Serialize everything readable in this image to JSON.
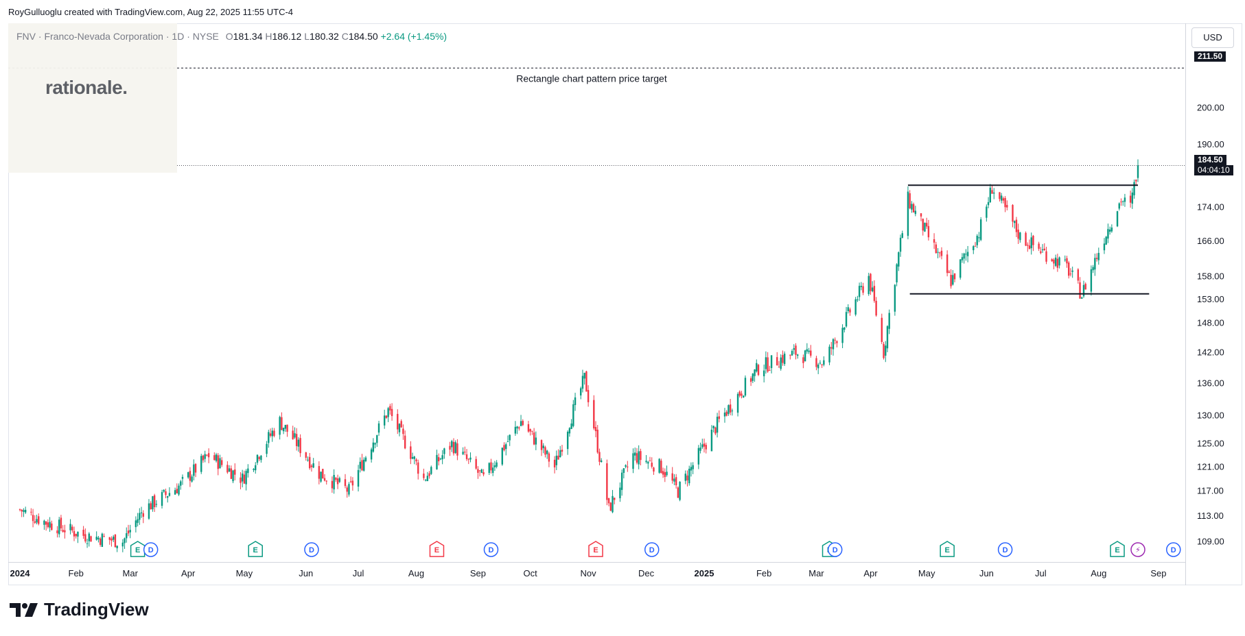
{
  "header": {
    "attribution": "RoyGulluoglu created with TradingView.com, Aug 22, 2025 11:55 UTC-4",
    "symbol": "FNV · Franco-Nevada Corporation · 1D · NYSE",
    "open_label": "O",
    "open": "181.34",
    "high_label": "H",
    "high": "186.12",
    "low_label": "L",
    "low": "180.32",
    "close_label": "C",
    "close": "184.50",
    "change": "+2.64 (+1.45%)"
  },
  "watermark": {
    "text": "rationale."
  },
  "currency": "USD",
  "price_tags": {
    "target": "211.50",
    "last": "184.50",
    "countdown": "04:04:10"
  },
  "brand": "TradingView",
  "colors": {
    "up": "#089981",
    "down": "#f23645",
    "text": "#131722",
    "dividend": "#2962ff",
    "split": "#9c27b0"
  },
  "chart_data": {
    "type": "candlestick",
    "title": "FNV · Franco-Nevada Corporation · 1D · NYSE",
    "x_ticks": [
      "2024",
      "Feb",
      "Mar",
      "Apr",
      "May",
      "Jun",
      "Jul",
      "Aug",
      "Sep",
      "Oct",
      "Nov",
      "Dec",
      "2025",
      "Feb",
      "Mar",
      "Apr",
      "May",
      "Jun",
      "Jul",
      "Aug",
      "Sep"
    ],
    "y_ticks": [
      109,
      113,
      117,
      121,
      125,
      130,
      136,
      142,
      148,
      153,
      158,
      166,
      174,
      184.5,
      190,
      200,
      211.5
    ],
    "y_range": [
      108,
      214
    ],
    "y_scale": "log",
    "price_path": [
      [
        "2024-01-02",
        114
      ],
      [
        "2024-01-16",
        112
      ],
      [
        "2024-02-05",
        110
      ],
      [
        "2024-02-26",
        109
      ],
      [
        "2024-03-08",
        114
      ],
      [
        "2024-03-28",
        118
      ],
      [
        "2024-04-12",
        123
      ],
      [
        "2024-04-30",
        119
      ],
      [
        "2024-05-20",
        129
      ],
      [
        "2024-06-10",
        120
      ],
      [
        "2024-06-26",
        117
      ],
      [
        "2024-07-17",
        131
      ],
      [
        "2024-08-05",
        119
      ],
      [
        "2024-08-20",
        125
      ],
      [
        "2024-09-06",
        119
      ],
      [
        "2024-09-26",
        129
      ],
      [
        "2024-10-14",
        121
      ],
      [
        "2024-10-30",
        137
      ],
      [
        "2024-11-12",
        114
      ],
      [
        "2024-11-25",
        123
      ],
      [
        "2024-12-10",
        121
      ],
      [
        "2024-12-19",
        117
      ],
      [
        "2025-01-10",
        129
      ],
      [
        "2025-01-31",
        139
      ],
      [
        "2025-02-20",
        142
      ],
      [
        "2025-03-07",
        140
      ],
      [
        "2025-03-31",
        158
      ],
      [
        "2025-04-08",
        142
      ],
      [
        "2025-04-21",
        176
      ],
      [
        "2025-05-14",
        157
      ],
      [
        "2025-05-29",
        168
      ],
      [
        "2025-06-05",
        179
      ],
      [
        "2025-06-20",
        167
      ],
      [
        "2025-07-15",
        160
      ],
      [
        "2025-07-23",
        154
      ],
      [
        "2025-08-05",
        168
      ],
      [
        "2025-08-13",
        176
      ],
      [
        "2025-08-18",
        174
      ],
      [
        "2025-08-22",
        184.5
      ]
    ],
    "last_bar": {
      "open": 181.34,
      "high": 186.12,
      "low": 180.32,
      "close": 184.5
    },
    "annotations": [
      {
        "type": "hline",
        "label": "Rectangle chart pattern price target",
        "value": 211.5,
        "style": "dashed"
      },
      {
        "type": "segment",
        "label": "",
        "value": 179.5,
        "from": "2025-04-21",
        "to": "2025-08-22"
      },
      {
        "type": "segment",
        "label": "",
        "value": 154.2,
        "from": "2025-04-22",
        "to": "2025-08-28"
      }
    ],
    "events": [
      {
        "type": "E",
        "date": "2024-03-05",
        "style": "earnings"
      },
      {
        "type": "D",
        "date": "2024-03-12",
        "style": "dividend"
      },
      {
        "type": "E",
        "date": "2024-05-07",
        "style": "earnings"
      },
      {
        "type": "D",
        "date": "2024-06-06",
        "style": "dividend"
      },
      {
        "type": "E",
        "date": "2024-08-12",
        "style": "earnings-miss"
      },
      {
        "type": "D",
        "date": "2024-09-10",
        "style": "dividend"
      },
      {
        "type": "E",
        "date": "2024-11-05",
        "style": "earnings-miss"
      },
      {
        "type": "D",
        "date": "2024-12-05",
        "style": "dividend"
      },
      {
        "type": "E",
        "date": "2025-03-10",
        "style": "earnings"
      },
      {
        "type": "D",
        "date": "2025-03-13",
        "style": "dividend"
      },
      {
        "type": "E",
        "date": "2025-05-12",
        "style": "earnings"
      },
      {
        "type": "D",
        "date": "2025-06-12",
        "style": "dividend"
      },
      {
        "type": "E",
        "date": "2025-08-11",
        "style": "earnings"
      },
      {
        "type": "S",
        "date": "2025-08-22",
        "style": "split"
      },
      {
        "type": "D",
        "date": "2025-09-10",
        "style": "dividend"
      }
    ]
  }
}
